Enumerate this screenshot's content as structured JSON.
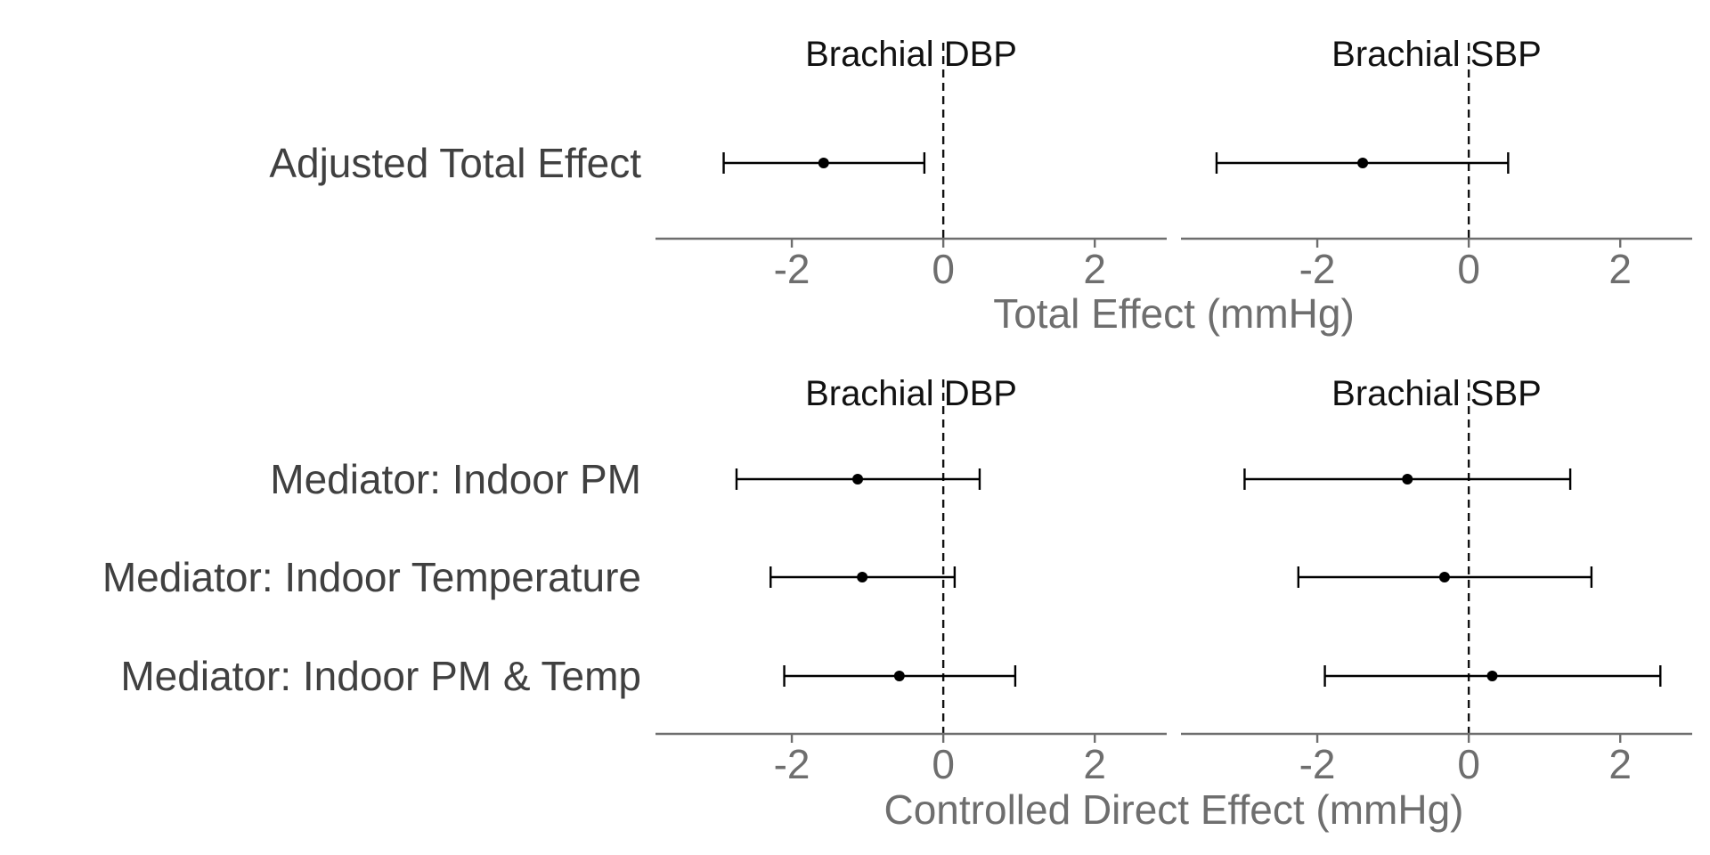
{
  "chart_data": [
    {
      "type": "forest",
      "xlabel": "Total Effect (mmHg)",
      "xlim": [
        -3.8,
        2.95
      ],
      "xticks": [
        -2,
        0,
        2
      ],
      "xtick_labels": [
        "-2",
        "0",
        "2"
      ],
      "reference_line": 0,
      "rows": [
        "Adjusted Total Effect"
      ],
      "facets": [
        {
          "title": "Brachial DBP",
          "estimates": [
            {
              "row": "Adjusted Total Effect",
              "estimate": -1.58,
              "lower": -2.9,
              "upper": -0.25
            }
          ]
        },
        {
          "title": "Brachial SBP",
          "estimates": [
            {
              "row": "Adjusted Total Effect",
              "estimate": -1.4,
              "lower": -3.33,
              "upper": 0.52
            }
          ]
        }
      ]
    },
    {
      "type": "forest",
      "xlabel": "Controlled Direct Effect (mmHg)",
      "xlim": [
        -3.8,
        2.95
      ],
      "xticks": [
        -2,
        0,
        2
      ],
      "xtick_labels": [
        "-2",
        "0",
        "2"
      ],
      "reference_line": 0,
      "rows": [
        "Mediator: Indoor PM",
        "Mediator: Indoor Temperature",
        "Mediator: Indoor PM & Temp"
      ],
      "facets": [
        {
          "title": "Brachial DBP",
          "estimates": [
            {
              "row": "Mediator: Indoor PM",
              "estimate": -1.13,
              "lower": -2.73,
              "upper": 0.48
            },
            {
              "row": "Mediator: Indoor Temperature",
              "estimate": -1.07,
              "lower": -2.28,
              "upper": 0.15
            },
            {
              "row": "Mediator: Indoor PM & Temp",
              "estimate": -0.58,
              "lower": -2.1,
              "upper": 0.95
            }
          ]
        },
        {
          "title": "Brachial SBP",
          "estimates": [
            {
              "row": "Mediator: Indoor PM",
              "estimate": -0.81,
              "lower": -2.96,
              "upper": 1.34
            },
            {
              "row": "Mediator: Indoor Temperature",
              "estimate": -0.32,
              "lower": -2.25,
              "upper": 1.62
            },
            {
              "row": "Mediator: Indoor PM & Temp",
              "estimate": 0.31,
              "lower": -1.9,
              "upper": 2.53
            }
          ]
        }
      ]
    }
  ]
}
